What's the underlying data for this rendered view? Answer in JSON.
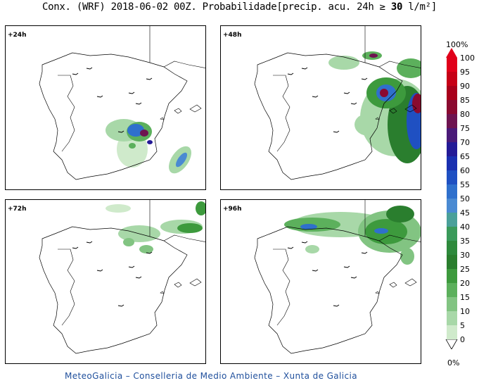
{
  "title": {
    "prefix": "Conx. (WRF) 2018-06-02 00Z. Probabilidade[precip. acu. 24h ≥ ",
    "bold": "30",
    "suffix": " l/m²]"
  },
  "panels": [
    {
      "label": "+24h"
    },
    {
      "label": "+48h"
    },
    {
      "label": "+72h"
    },
    {
      "label": "+96h"
    }
  ],
  "colorbar": {
    "top_label": "100%",
    "bottom_label": "0%",
    "ticks": [
      "100",
      "95",
      "90",
      "85",
      "80",
      "75",
      "70",
      "65",
      "60",
      "55",
      "50",
      "45",
      "40",
      "35",
      "30",
      "25",
      "20",
      "15",
      "10",
      "5",
      "0"
    ],
    "colors": [
      "#e0001a",
      "#c60016",
      "#a8001a",
      "#8a0a30",
      "#6e1450",
      "#4a1a78",
      "#241a96",
      "#1a30b0",
      "#1f50c2",
      "#2f70cc",
      "#4a8ad2",
      "#4aa09a",
      "#3a9a5a",
      "#2e8a3c",
      "#2a7e2e",
      "#3d9a3d",
      "#5cb05c",
      "#82c482",
      "#a8d8a8",
      "#cfeacb"
    ]
  },
  "footer": "MeteoGalicia – Conselleria de Medio Ambiente – Xunta de Galicia"
}
